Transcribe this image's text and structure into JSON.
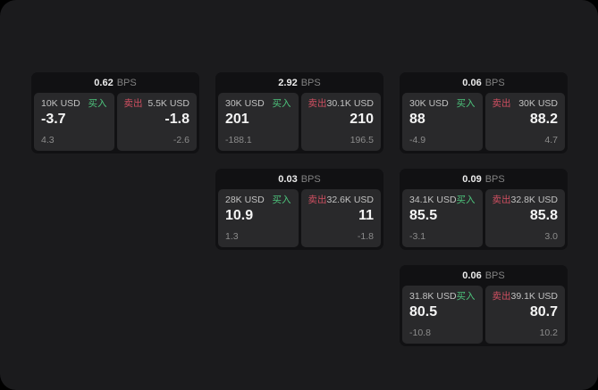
{
  "labels": {
    "bps_unit": "BPS",
    "buy": "买入",
    "sell": "卖出"
  },
  "colors": {
    "outer_background": "#000000",
    "surface": "#1b1b1d",
    "card_background": "#111113",
    "tile_background": "#29292b",
    "buy_green": "#4dc47c",
    "sell_red": "#cf4f61",
    "primary_text": "#f4f4f4",
    "secondary_text": "#8c8c8c"
  },
  "cards": [
    {
      "bps": "0.62",
      "buy": {
        "amount": "10K USD",
        "price": "-3.7",
        "delta": "4.3"
      },
      "sell": {
        "amount": "5.5K USD",
        "price": "-1.8",
        "delta": "-2.6"
      }
    },
    {
      "bps": "2.92",
      "buy": {
        "amount": "30K USD",
        "price": "201",
        "delta": "-188.1"
      },
      "sell": {
        "amount": "30.1K USD",
        "price": "210",
        "delta": "196.5"
      }
    },
    {
      "bps": "0.06",
      "buy": {
        "amount": "30K USD",
        "price": "88",
        "delta": "-4.9"
      },
      "sell": {
        "amount": "30K USD",
        "price": "88.2",
        "delta": "4.7"
      }
    },
    {
      "bps": "0.03",
      "buy": {
        "amount": "28K USD",
        "price": "10.9",
        "delta": "1.3"
      },
      "sell": {
        "amount": "32.6K USD",
        "price": "11",
        "delta": "-1.8"
      }
    },
    {
      "bps": "0.09",
      "buy": {
        "amount": "34.1K USD",
        "price": "85.5",
        "delta": "-3.1"
      },
      "sell": {
        "amount": "32.8K USD",
        "price": "85.8",
        "delta": "3.0"
      }
    },
    {
      "bps": "0.06",
      "buy": {
        "amount": "31.8K USD",
        "price": "80.5",
        "delta": "-10.8"
      },
      "sell": {
        "amount": "39.1K USD",
        "price": "80.7",
        "delta": "10.2"
      }
    }
  ]
}
